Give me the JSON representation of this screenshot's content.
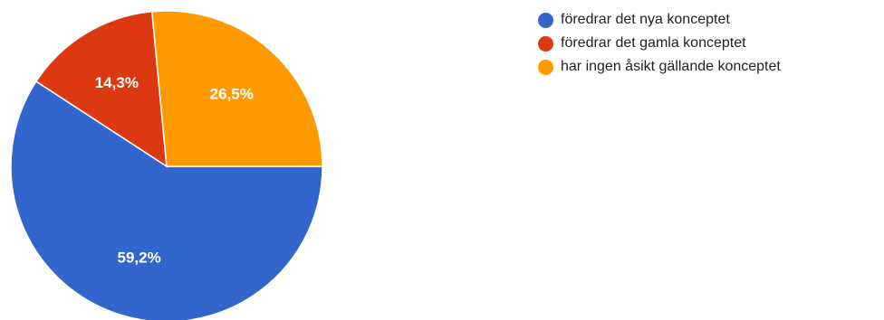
{
  "chart_data": {
    "type": "pie",
    "title": "",
    "slices": [
      {
        "label": "föredrar det nya konceptet",
        "value": 59.2,
        "display": "59,2%",
        "color": "#3366cc"
      },
      {
        "label": "föredrar det gamla konceptet",
        "value": 14.3,
        "display": "14,3%",
        "color": "#dc3912"
      },
      {
        "label": "har ingen åsikt gällande konceptet",
        "value": 26.5,
        "display": "26,5%",
        "color": "#ff9900"
      }
    ],
    "legend_position": "right"
  }
}
